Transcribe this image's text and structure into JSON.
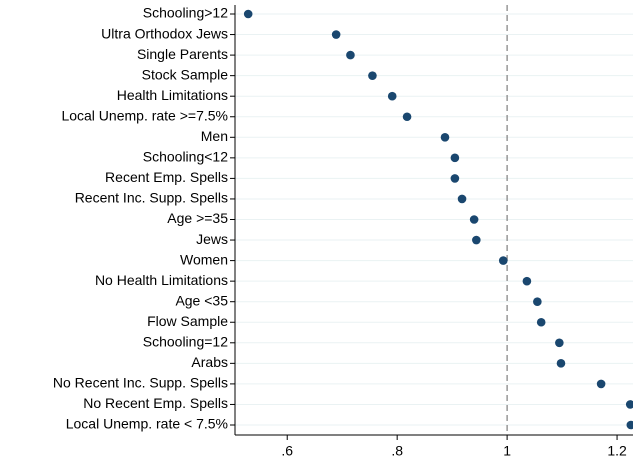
{
  "chart_data": {
    "type": "dot",
    "categories": [
      "Schooling>12",
      "Ultra Orthodox Jews",
      "Single Parents",
      "Stock Sample",
      "Health Limitations",
      "Local Unemp. rate >=7.5%",
      "Men",
      "Schooling<12",
      "Recent Emp. Spells",
      "Recent Inc. Supp. Spells",
      "Age >=35",
      "Jews",
      "Women",
      "No Health Limitations",
      "Age <35",
      "Flow Sample",
      "Schooling=12",
      "Arabs",
      "No Recent Inc. Supp. Spells",
      "No Recent Emp. Spells",
      "Local Unemp. rate < 7.5%"
    ],
    "values": [
      0.529,
      0.689,
      0.715,
      0.755,
      0.791,
      0.818,
      0.887,
      0.905,
      0.905,
      0.918,
      0.94,
      0.944,
      0.993,
      1.036,
      1.055,
      1.062,
      1.095,
      1.098,
      1.171,
      1.224,
      1.225
    ],
    "color": "#1a476f",
    "xlim": [
      0.505,
      1.229
    ],
    "xticks": [
      {
        "value": 0.6,
        "label": ".6"
      },
      {
        "value": 0.8,
        "label": ".8"
      },
      1,
      1.2
    ],
    "refline": 1,
    "grid": true
  }
}
